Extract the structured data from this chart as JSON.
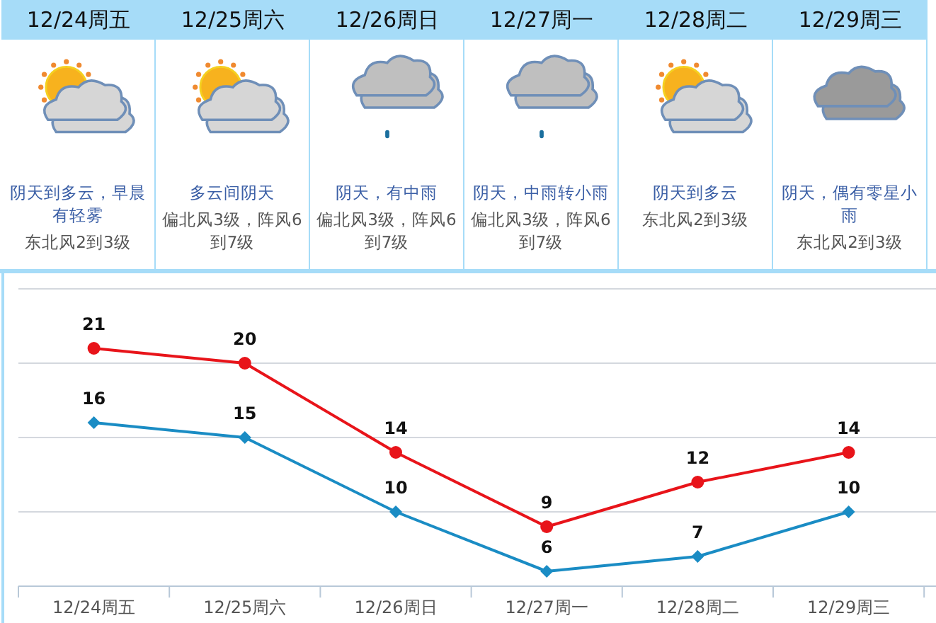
{
  "chart_data": [
    {
      "type": "other",
      "categories": [
        "12/24周五",
        "12/25周六",
        "12/26周日",
        "12/27周一",
        "12/28周二",
        "12/29周三"
      ],
      "annotations": [
        "阴天到多云，早晨有轻雾",
        "东北风2到3级",
        "多云间阴天",
        "偏北风3级，阵风6到7级",
        "阴天，有中雨",
        "偏北风3级，阵风6到7级",
        "阴天，中雨转小雨",
        "偏北风3级，阵风6到7级",
        "阴天到多云",
        "东北风2到3级",
        "阴天，偶有零星小雨",
        "东北风2到3级"
      ]
    },
    {
      "type": "line",
      "categories": [
        "12/24周五",
        "12/25周六",
        "12/26周日",
        "12/27周一",
        "12/28周二",
        "12/29周三"
      ],
      "series": [
        {
          "color": "#e8141a",
          "marker": "circle",
          "values": [
            21,
            20,
            14,
            9,
            12,
            14
          ]
        },
        {
          "color": "#1a8cc4",
          "marker": "diamond",
          "values": [
            16,
            15,
            10,
            6,
            7,
            10
          ]
        }
      ],
      "ylim": [
        5,
        25
      ],
      "yticks": [
        {
          "value": 5,
          "label": null
        },
        {
          "value": 10,
          "label": null
        },
        {
          "value": 15,
          "label": null
        },
        {
          "value": 20,
          "label": null
        },
        {
          "value": 25,
          "label": null
        }
      ],
      "grid": "y",
      "data_labels": true,
      "tick_labels": "x"
    }
  ]
}
